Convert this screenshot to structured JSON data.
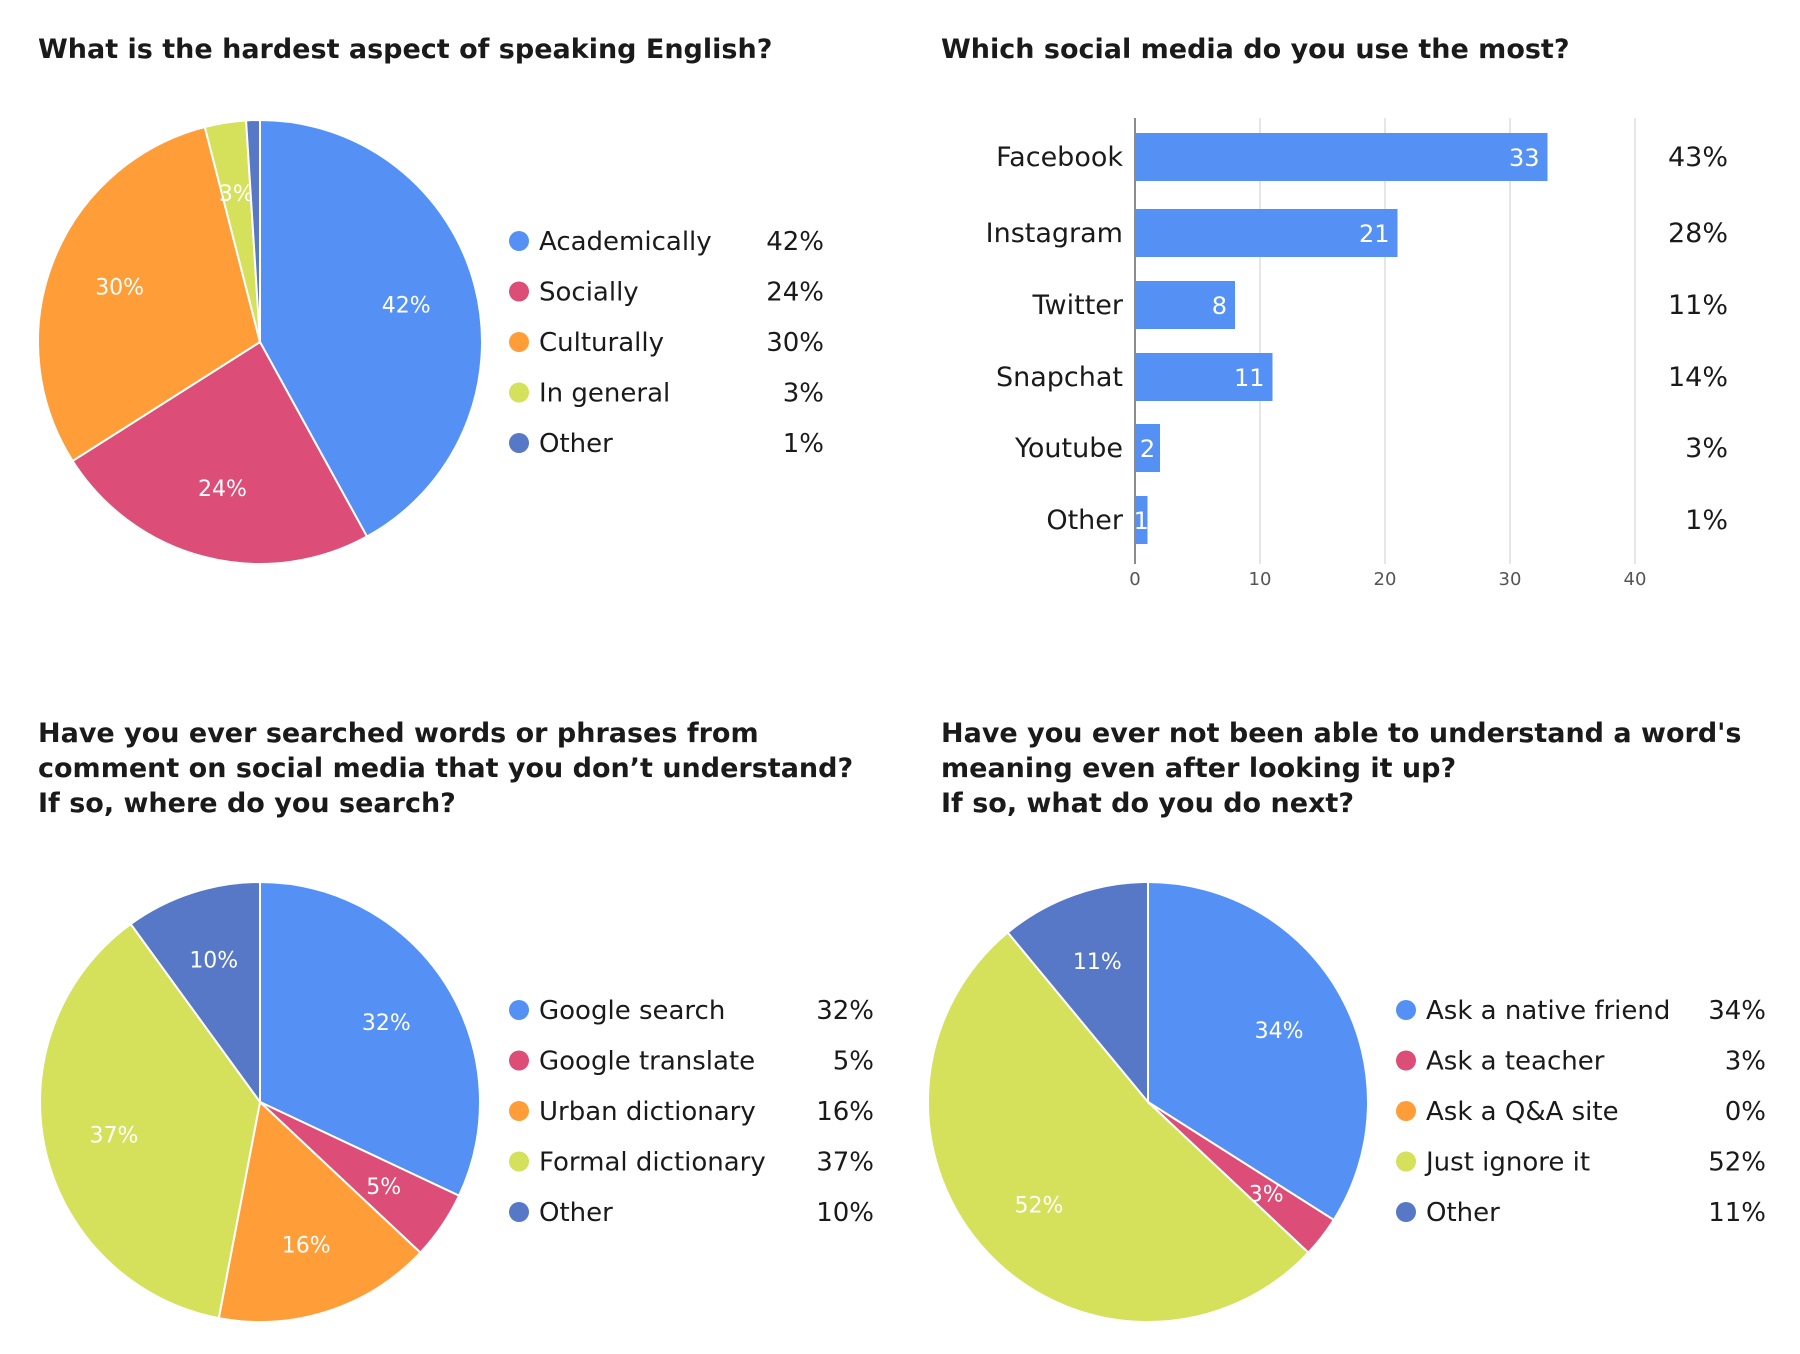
{
  "chart_data": [
    {
      "type": "pie",
      "title": "What is the hardest aspect of speaking English?",
      "slices": [
        {
          "label": "Academically",
          "value": 42,
          "pct_label": "42%",
          "color": "#5591f5"
        },
        {
          "label": "Socially",
          "value": 24,
          "pct_label": "24%",
          "color": "#dc4d78"
        },
        {
          "label": "Culturally",
          "value": 30,
          "pct_label": "30%",
          "color": "#ff9d38"
        },
        {
          "label": "In general",
          "value": 3,
          "pct_label": "3%",
          "color": "#d5e05b"
        },
        {
          "label": "Other",
          "value": 1,
          "pct_label": "1%",
          "color": "#5678c6"
        }
      ],
      "legend_position": "right"
    },
    {
      "type": "bar",
      "orientation": "horizontal",
      "title": "Which social media do you use the most?",
      "categories": [
        "Facebook",
        "Instagram",
        "Twitter",
        "Snapchat",
        "Youtube",
        "Other"
      ],
      "values": [
        33,
        21,
        8,
        11,
        2,
        1
      ],
      "percent_labels": [
        "43%",
        "28%",
        "11%",
        "14%",
        "3%",
        "1%"
      ],
      "xlim": [
        0,
        40
      ],
      "xticks": [
        0,
        10,
        20,
        30,
        40
      ],
      "grid": true,
      "color": "#5591f5"
    },
    {
      "type": "pie",
      "title": "Have you ever searched words or phrases from comment on social media that you don’t understand? If so, where do you search?",
      "title_lines": [
        "Have you ever searched words or phrases from",
        "comment on social media that you don’t understand?",
        "If so, where do you search?"
      ],
      "slices": [
        {
          "label": "Google search",
          "value": 32,
          "pct_label": "32%",
          "color": "#5591f5"
        },
        {
          "label": "Google translate",
          "value": 5,
          "pct_label": "5%",
          "color": "#dc4d78"
        },
        {
          "label": "Urban dictionary",
          "value": 16,
          "pct_label": "16%",
          "color": "#ff9d38"
        },
        {
          "label": "Formal dictionary",
          "value": 37,
          "pct_label": "37%",
          "color": "#d5e05b"
        },
        {
          "label": "Other",
          "value": 10,
          "pct_label": "10%",
          "color": "#5678c6"
        }
      ],
      "legend_position": "right"
    },
    {
      "type": "pie",
      "title": "Have you ever not been able to understand a word's meaning even after looking it up? If so, what do you do next?",
      "title_lines": [
        "Have you ever not been able to understand a word's",
        "meaning even after looking it up?",
        "If so, what do you do next?"
      ],
      "slices": [
        {
          "label": "Ask a native friend",
          "value": 34,
          "pct_label": "34%",
          "color": "#5591f5"
        },
        {
          "label": "Ask a teacher",
          "value": 3,
          "pct_label": "3%",
          "color": "#dc4d78"
        },
        {
          "label": "Ask a Q&A site",
          "value": 0,
          "pct_label": "0%",
          "color": "#ff9d38"
        },
        {
          "label": "Just ignore it",
          "value": 52,
          "pct_label": "52%",
          "color": "#d5e05b"
        },
        {
          "label": "Other",
          "value": 11,
          "pct_label": "11%",
          "color": "#5678c6"
        }
      ],
      "legend_position": "right"
    }
  ]
}
